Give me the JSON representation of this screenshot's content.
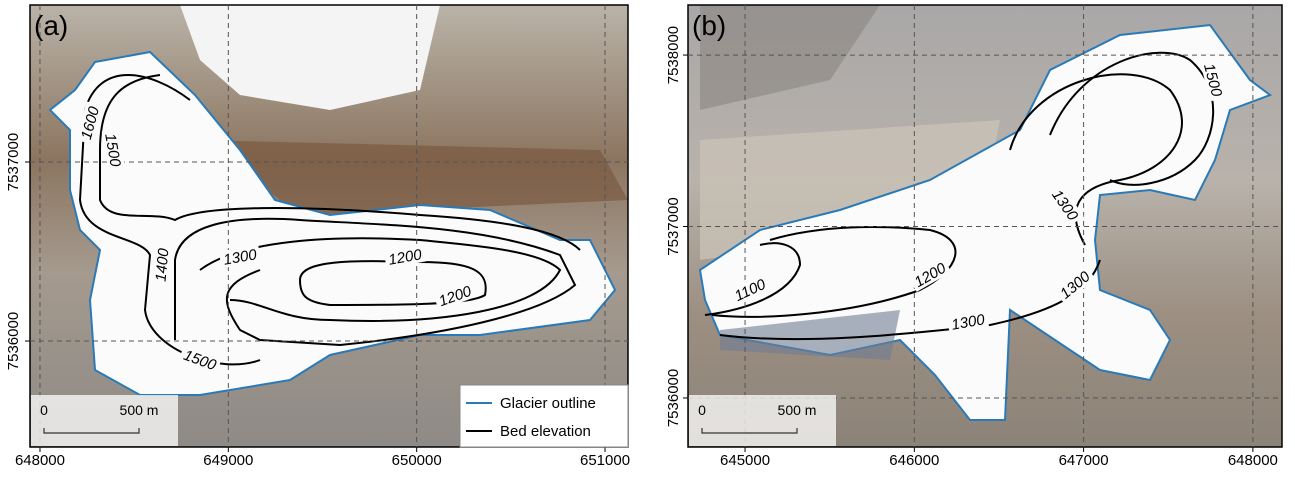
{
  "panels": [
    {
      "label": "(a)",
      "xlim": [
        647947,
        651122
      ],
      "ylim": [
        7535408,
        7537877
      ],
      "xticks": [
        648000,
        649000,
        650000,
        651000
      ],
      "yticks": [
        7536000,
        7537000
      ],
      "contours": [
        1600,
        1500,
        1400,
        1300,
        1200,
        1200,
        1500
      ],
      "legend": [
        "Glacier outline",
        "Bed elevation"
      ],
      "scalebar": [
        "0",
        "500 m"
      ]
    },
    {
      "label": "(b)",
      "xlim": [
        644663,
        648172
      ],
      "ylim": [
        7535714,
        7538292
      ],
      "xticks": [
        645000,
        646000,
        647000,
        648000
      ],
      "yticks": [
        7536000,
        7537000,
        7538000
      ],
      "contours": [
        1500,
        1300,
        1300,
        1300,
        1200,
        1100
      ],
      "scalebar": [
        "0",
        "500 m"
      ]
    }
  ]
}
